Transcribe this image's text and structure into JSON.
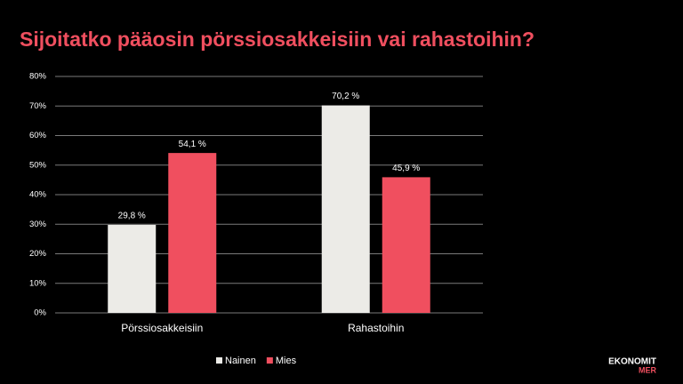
{
  "chart_data": {
    "type": "bar",
    "title": "Sijoitatko pääosin pörssiosakkeisiin vai rahastoihin?",
    "categories": [
      "Pörssiosakkeisiin",
      "Rahastoihin"
    ],
    "series": [
      {
        "name": "Nainen",
        "color": "#ecebe7",
        "values": [
          29.8,
          70.2
        ],
        "value_labels": [
          "29,8 %",
          "70,2 %"
        ]
      },
      {
        "name": "Mies",
        "color": "#f04f5f",
        "values": [
          54.1,
          45.9
        ],
        "value_labels": [
          "54,1 %",
          "45,9 %"
        ]
      }
    ],
    "ylim": [
      0,
      80
    ],
    "yticks": [
      {
        "value": 0,
        "label": "0%"
      },
      {
        "value": 10,
        "label": "10%"
      },
      {
        "value": 20,
        "label": "20%"
      },
      {
        "value": 30,
        "label": "30%"
      },
      {
        "value": 40,
        "label": "40%"
      },
      {
        "value": 50,
        "label": "50%"
      },
      {
        "value": 60,
        "label": "60%"
      },
      {
        "value": 70,
        "label": "70%"
      },
      {
        "value": 80,
        "label": "80%"
      }
    ],
    "grid": true,
    "legend": "bottom"
  },
  "logo": {
    "line1": "EKONOMIT",
    "line2": "MER"
  }
}
